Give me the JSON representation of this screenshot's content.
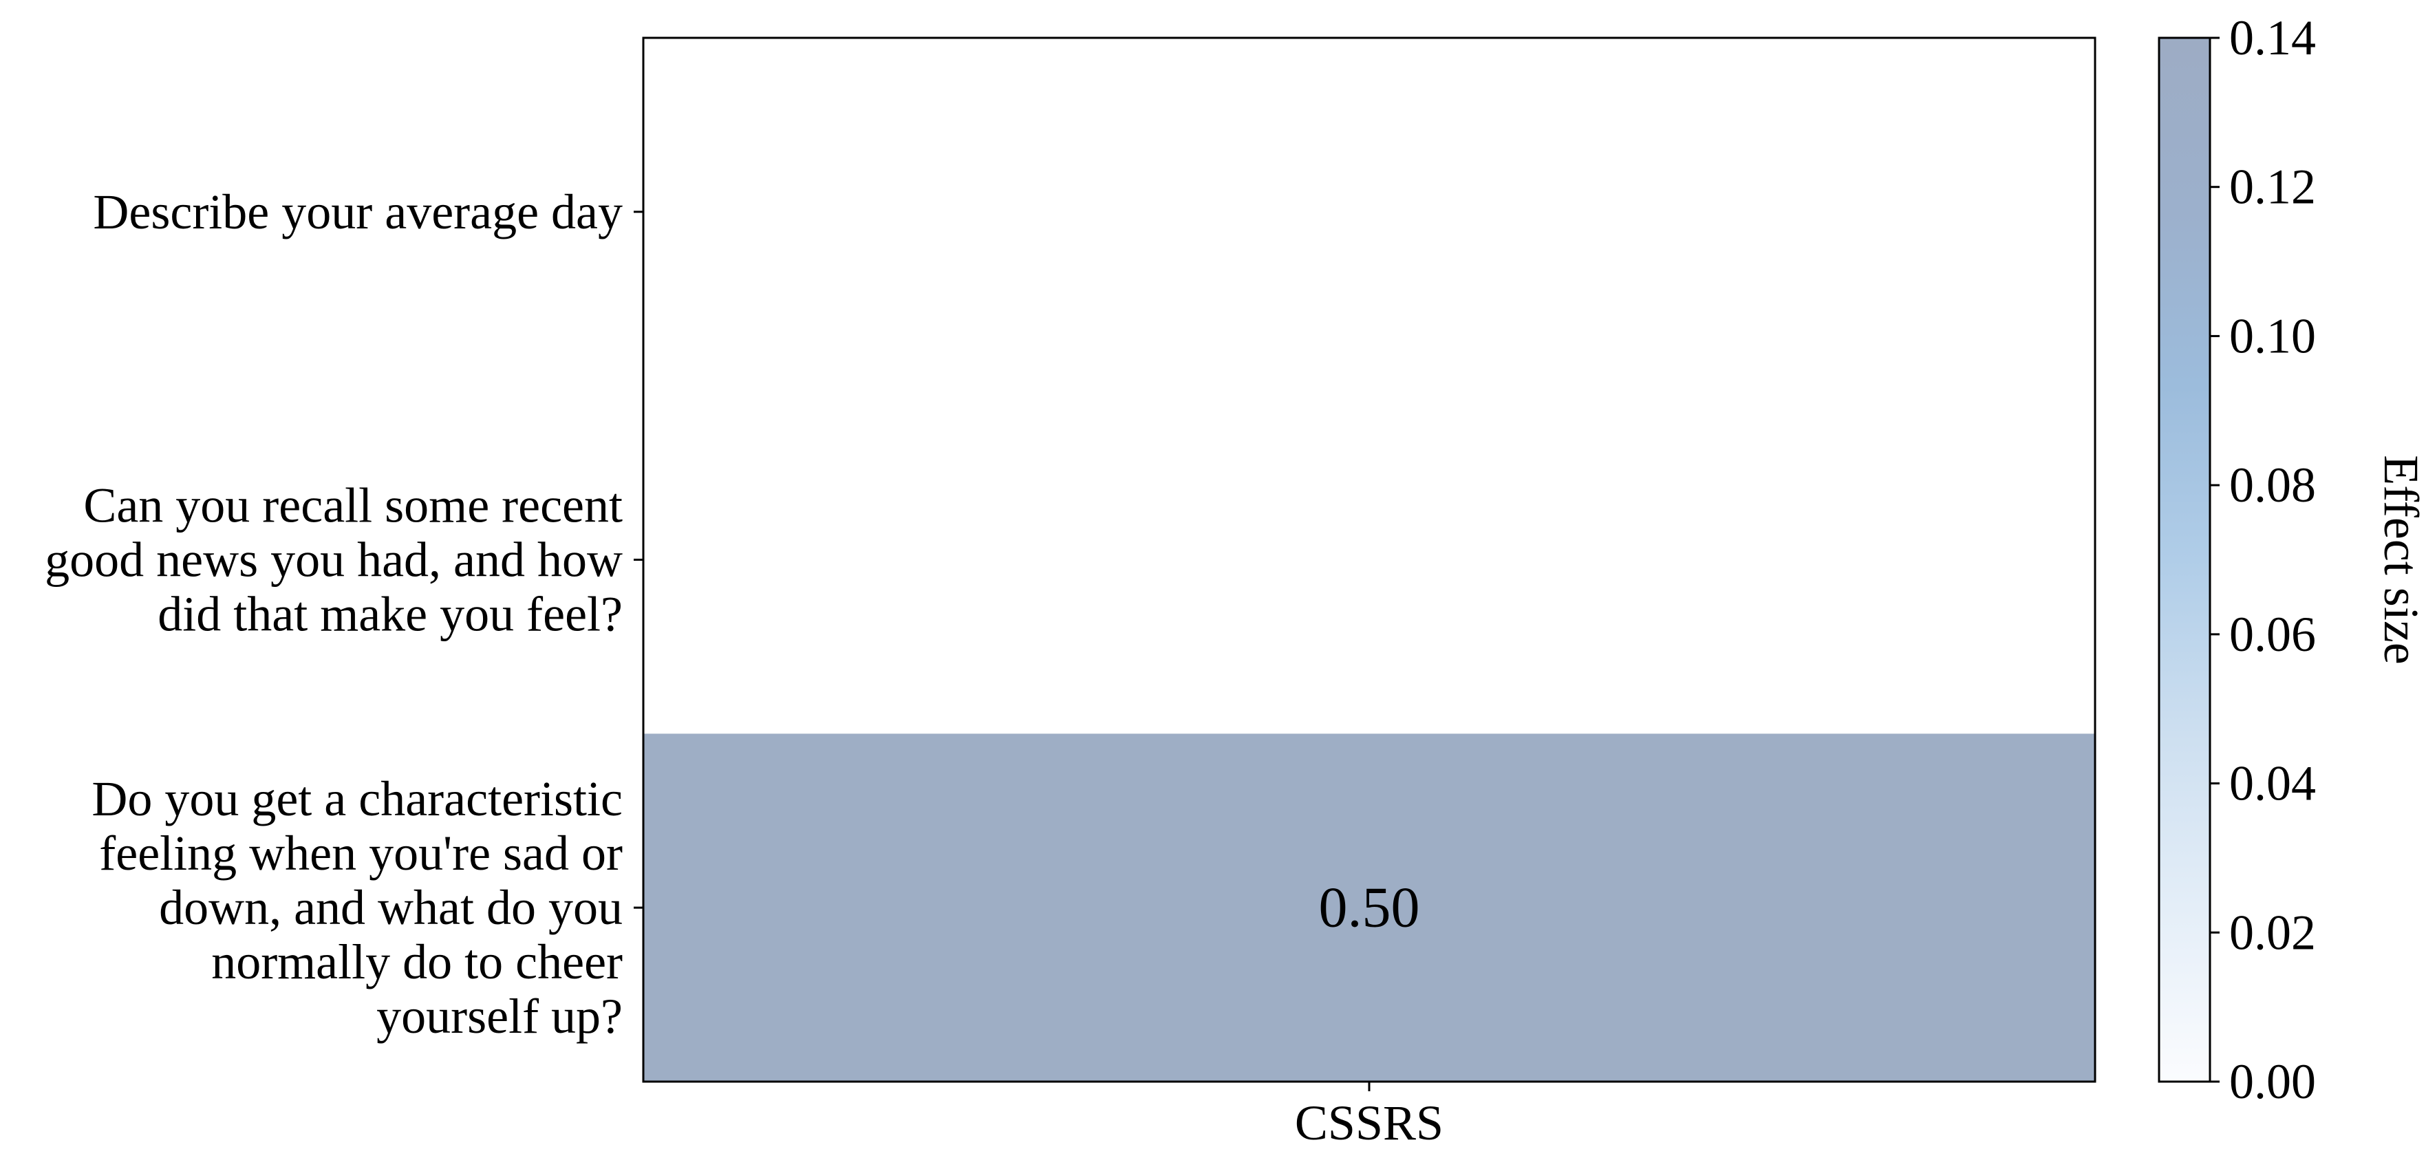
{
  "chart_data": {
    "type": "heatmap",
    "columns": [
      "CSSRS"
    ],
    "rows": [
      [
        "Describe your average day"
      ],
      [
        "Can you recall some recent",
        "good news you had, and how",
        "did that make you feel?"
      ],
      [
        "Do you get a characteristic",
        "feeling when you're sad or",
        "down, and what do you",
        "normally do to cheer",
        "yourself up?"
      ]
    ],
    "values": [
      [
        null
      ],
      [
        null
      ],
      [
        0.5
      ]
    ],
    "annotations": [
      [
        ""
      ],
      [
        ""
      ],
      [
        "0.50"
      ]
    ],
    "colorbar": {
      "label": "Effect size",
      "range": [
        0.0,
        0.14
      ],
      "ticks": [
        "0.00",
        "0.02",
        "0.04",
        "0.06",
        "0.08",
        "0.10",
        "0.12",
        "0.14"
      ],
      "colormap": "Blues",
      "alpha": 0.4
    },
    "colors": {
      "cell_fill": "#9eaec5",
      "colorbar_stops": [
        "#fbfcfe",
        "#e4eef8",
        "#cddff0",
        "#b0cde8",
        "#9cbcdc",
        "#9cb0cc",
        "#9dacc4"
      ],
      "frame": "#000000"
    }
  }
}
